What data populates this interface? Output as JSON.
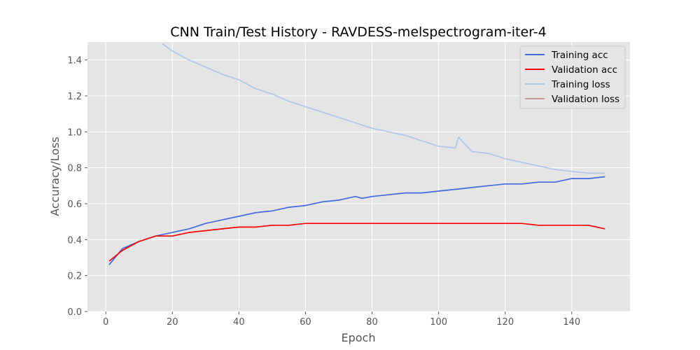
{
  "chart_data": {
    "type": "line",
    "title": "CNN Train/Test History -  RAVDESS-melspectrogram-iter-4",
    "xlabel": "Epoch",
    "ylabel": "Accuracy/Loss",
    "xlim": [
      -5.5,
      157.5
    ],
    "ylim": [
      0.0,
      1.5
    ],
    "xticks": [
      0,
      20,
      40,
      60,
      80,
      100,
      120,
      140
    ],
    "yticks": [
      0.0,
      0.2,
      0.4,
      0.6,
      0.8,
      1.0,
      1.2,
      1.4
    ],
    "xtick_labels": [
      "0",
      "20",
      "40",
      "60",
      "80",
      "100",
      "120",
      "140"
    ],
    "ytick_labels": [
      "0.0",
      "0.2",
      "0.4",
      "0.6",
      "0.8",
      "1.0",
      "1.2",
      "1.4"
    ],
    "grid": true,
    "legend_position": "top-right",
    "background": "#e5e5e5",
    "series": [
      {
        "name": "Training acc",
        "color": "#4169e1",
        "x": [
          1,
          5,
          10,
          15,
          20,
          25,
          30,
          35,
          40,
          45,
          50,
          55,
          60,
          65,
          70,
          75,
          77,
          80,
          85,
          90,
          95,
          100,
          105,
          110,
          115,
          120,
          125,
          130,
          135,
          140,
          145,
          150
        ],
        "y": [
          0.26,
          0.35,
          0.39,
          0.42,
          0.44,
          0.46,
          0.49,
          0.51,
          0.53,
          0.55,
          0.56,
          0.58,
          0.59,
          0.61,
          0.62,
          0.64,
          0.63,
          0.64,
          0.65,
          0.66,
          0.66,
          0.67,
          0.68,
          0.69,
          0.7,
          0.71,
          0.71,
          0.72,
          0.72,
          0.74,
          0.74,
          0.75
        ]
      },
      {
        "name": "Validation acc",
        "color": "#ff0000",
        "x": [
          1,
          5,
          10,
          15,
          20,
          25,
          30,
          35,
          40,
          45,
          50,
          55,
          60,
          65,
          70,
          75,
          80,
          85,
          90,
          95,
          100,
          105,
          110,
          115,
          120,
          125,
          130,
          135,
          140,
          145,
          150
        ],
        "y": [
          0.28,
          0.34,
          0.39,
          0.42,
          0.42,
          0.44,
          0.45,
          0.46,
          0.47,
          0.47,
          0.48,
          0.48,
          0.49,
          0.49,
          0.49,
          0.49,
          0.49,
          0.49,
          0.49,
          0.49,
          0.49,
          0.49,
          0.49,
          0.49,
          0.49,
          0.49,
          0.48,
          0.48,
          0.48,
          0.48,
          0.46
        ]
      },
      {
        "name": "Training loss",
        "color": "#aec6e8",
        "x": [
          17,
          20,
          25,
          30,
          35,
          40,
          45,
          50,
          55,
          60,
          65,
          70,
          75,
          80,
          85,
          90,
          95,
          100,
          105,
          106,
          110,
          115,
          120,
          125,
          130,
          135,
          140,
          145,
          150
        ],
        "y": [
          1.49,
          1.45,
          1.4,
          1.36,
          1.32,
          1.29,
          1.24,
          1.21,
          1.17,
          1.14,
          1.11,
          1.08,
          1.05,
          1.02,
          1.0,
          0.98,
          0.95,
          0.92,
          0.91,
          0.97,
          0.89,
          0.88,
          0.85,
          0.83,
          0.81,
          0.79,
          0.78,
          0.77,
          0.77
        ]
      },
      {
        "name": "Validation loss",
        "color": "#c79a9a",
        "x": [],
        "y": []
      }
    ]
  }
}
